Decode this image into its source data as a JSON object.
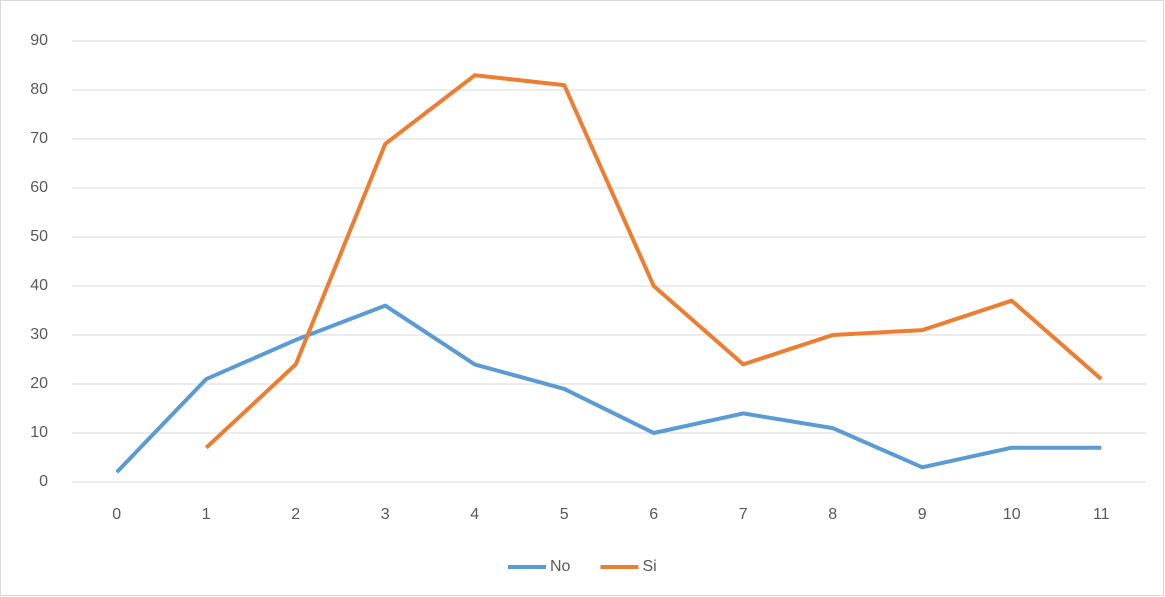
{
  "chart_data": {
    "type": "line",
    "categories": [
      "0",
      "1",
      "2",
      "3",
      "4",
      "5",
      "6",
      "7",
      "8",
      "9",
      "10",
      "11"
    ],
    "series": [
      {
        "name": "No",
        "color": "#5b9bd5",
        "values": [
          2,
          21,
          29,
          36,
          24,
          19,
          10,
          14,
          11,
          3,
          7,
          7
        ]
      },
      {
        "name": "Si",
        "color": "#ed7d31",
        "values": [
          null,
          7,
          24,
          69,
          83,
          81,
          40,
          24,
          30,
          31,
          37,
          21
        ]
      }
    ],
    "ylim": [
      0,
      90
    ],
    "yticks": [
      0,
      10,
      20,
      30,
      40,
      50,
      60,
      70,
      80,
      90
    ],
    "grid": true,
    "legend": "bottom"
  }
}
